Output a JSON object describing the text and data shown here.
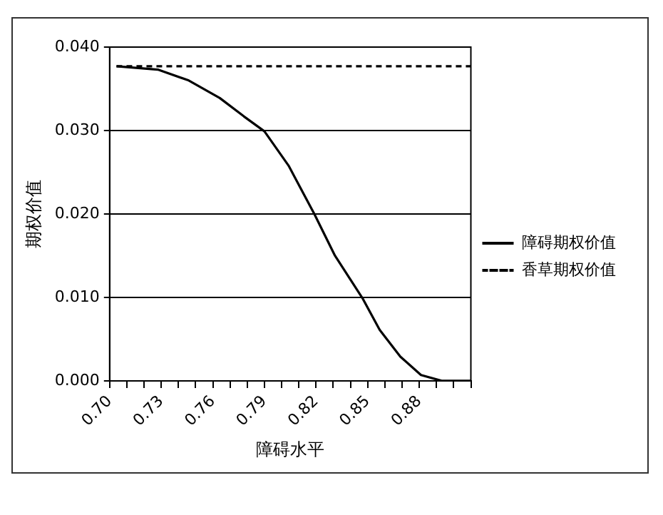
{
  "chart_data": {
    "type": "line",
    "xlabel": "障碍水平",
    "ylabel": "期权价值",
    "xlim": [
      0.7,
      0.91
    ],
    "xticks": [
      {
        "value": 0.7,
        "label": "0.70"
      },
      {
        "value": 0.71,
        "label": null
      },
      {
        "value": 0.72,
        "label": null
      },
      0.73,
      {
        "value": 0.74,
        "label": null
      },
      {
        "value": 0.75,
        "label": null
      },
      0.76,
      {
        "value": 0.77,
        "label": null
      },
      {
        "value": 0.78,
        "label": null
      },
      0.79,
      {
        "value": 0.8,
        "label": null
      },
      {
        "value": 0.81,
        "label": null
      },
      0.82,
      {
        "value": 0.83,
        "label": null
      },
      {
        "value": 0.84,
        "label": null
      },
      0.85,
      {
        "value": 0.86,
        "label": null
      },
      {
        "value": 0.87,
        "label": null
      },
      0.88,
      {
        "value": 0.89,
        "label": null
      },
      {
        "value": 0.9,
        "label": null
      },
      {
        "value": 0.91,
        "label": null
      }
    ],
    "ylim": [
      0,
      0.04
    ],
    "yticks": [
      {
        "value": 0,
        "label": "0.000"
      },
      {
        "value": 0.01,
        "label": "0.010"
      },
      {
        "value": 0.02,
        "label": "0.020"
      },
      {
        "value": 0.03,
        "label": "0.030"
      },
      {
        "value": 0.04,
        "label": "0.040"
      }
    ],
    "grid": "y",
    "legend": "right",
    "marker": "none",
    "x": [
      0.704,
      0.728,
      0.746,
      0.764,
      0.778,
      0.79,
      0.804,
      0.819,
      0.831,
      0.847,
      0.857,
      0.869,
      0.881,
      0.893,
      0.91
    ],
    "series": [
      {
        "name": "障碍期权价值",
        "color": "#000000",
        "line_style": "solid",
        "values": [
          0.0377,
          0.0373,
          0.036,
          0.0339,
          0.0317,
          0.0299,
          0.0258,
          0.02,
          0.015,
          0.0099,
          0.0061,
          0.0029,
          0.0007,
          0.0,
          0.0
        ]
      },
      {
        "name": "香草期权价值",
        "color": "#000000",
        "line_style": "dashed",
        "values": [
          0.0377,
          0.0377,
          0.0377,
          0.0377,
          0.0377,
          0.0377,
          0.0377,
          0.0377,
          0.0377,
          0.0377,
          0.0377,
          0.0377,
          0.0377,
          0.0377,
          0.0377
        ]
      }
    ]
  }
}
